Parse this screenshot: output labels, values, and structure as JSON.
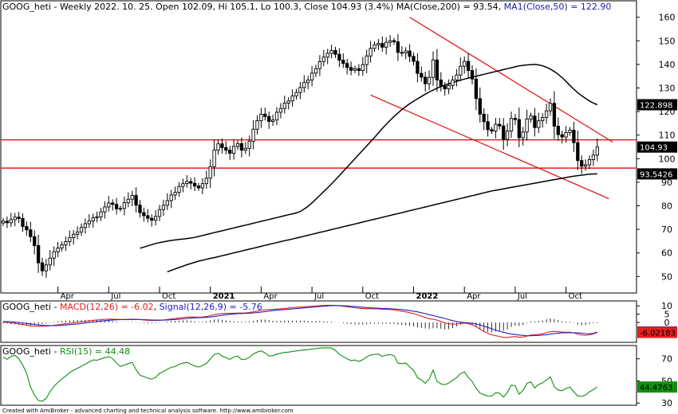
{
  "chart_data": [
    {
      "type": "candlestick",
      "panel": "price",
      "title_parts": {
        "symbol": "GOOG_heti",
        "rest": " - Weekly 2022. 10. 25. Open 102.09, Hi 105.1, Lo 100.3, Close 104.93 (3.4%) MA(Close,200) = 93.54, ",
        "ma50": "MA1(Close,50) = 122.90"
      },
      "ylim": [
        43,
        167
      ],
      "yticks": [
        50,
        60,
        70,
        80,
        90,
        100,
        110,
        120,
        130,
        140,
        150,
        160
      ],
      "x_labels": [
        {
          "label": "Apr",
          "i": 14,
          "bold": false
        },
        {
          "label": "Jul",
          "i": 27,
          "bold": false
        },
        {
          "label": "Oct",
          "i": 40,
          "bold": false
        },
        {
          "label": "2021",
          "i": 53,
          "bold": true
        },
        {
          "label": "Apr",
          "i": 66,
          "bold": false
        },
        {
          "label": "Jul",
          "i": 79,
          "bold": false
        },
        {
          "label": "Oct",
          "i": 92,
          "bold": false
        },
        {
          "label": "2022",
          "i": 105,
          "bold": true
        },
        {
          "label": "Apr",
          "i": 118,
          "bold": false
        },
        {
          "label": "Jul",
          "i": 131,
          "bold": false
        },
        {
          "label": "Oct",
          "i": 144,
          "bold": false
        }
      ],
      "closes": [
        73.5,
        72.8,
        74.1,
        75.2,
        74.6,
        71.2,
        69.8,
        66.9,
        63.1,
        55.8,
        52.4,
        54.9,
        57.8,
        60.5,
        62.1,
        63.4,
        64.8,
        66.5,
        67.9,
        68.9,
        70.8,
        72.4,
        73.6,
        74.9,
        75.3,
        77.4,
        79.5,
        81.2,
        80.6,
        78.7,
        78.9,
        81.3,
        82.8,
        84.4,
        80.3,
        77.1,
        75.8,
        74.7,
        73.9,
        75.5,
        78.4,
        80.2,
        82.2,
        84.6,
        85.7,
        88.2,
        89.4,
        90.3,
        89.6,
        88.4,
        87.6,
        89.4,
        91.7,
        96.6,
        103.6,
        106.3,
        104.7,
        103.6,
        102.3,
        105.2,
        106.4,
        103.6,
        104.4,
        107.4,
        112.5,
        116.1,
        118.9,
        117.9,
        115.8,
        116.4,
        119.7,
        121.3,
        123.6,
        124.5,
        126.6,
        128.1,
        130.2,
        132.3,
        133.4,
        136.3,
        138.2,
        141.2,
        143.1,
        144.7,
        145.9,
        144.3,
        141.8,
        140.4,
        138.7,
        137.5,
        138.2,
        137.4,
        139.9,
        143.6,
        146.8,
        148.3,
        148.9,
        147.3,
        149.4,
        150.1,
        149.6,
        145.1,
        144.9,
        145.7,
        143.4,
        141.3,
        136.2,
        134.6,
        131.8,
        134.5,
        141.9,
        133.4,
        130.8,
        129.6,
        131.1,
        133.4,
        135.5,
        139.2,
        141.3,
        137.4,
        133.8,
        125.5,
        118.9,
        115.7,
        112.3,
        111.7,
        114.6,
        113.9,
        108.2,
        111.7,
        117.1,
        116.6,
        108.9,
        111.3,
        116.8,
        118.1,
        113.2,
        116.1,
        117.5,
        120.3,
        123.5,
        113.8,
        110.2,
        109.2,
        111.1,
        112.1,
        106.8,
        99.2,
        96.8,
        97.4,
        99.6,
        101.5,
        104.93
      ],
      "ma200": [
        52.0,
        52.6,
        53.2,
        53.8,
        54.4,
        55.0,
        55.5,
        56.0,
        56.5,
        56.9,
        57.3,
        57.7,
        58.0,
        58.4,
        58.8,
        59.2,
        59.6,
        60.0,
        60.4,
        60.8,
        61.2,
        61.6,
        62.0,
        62.4,
        62.8,
        63.2,
        63.6,
        64.0,
        64.4,
        64.8,
        65.2,
        65.5,
        65.9,
        66.3,
        66.7,
        67.1,
        67.5,
        67.9,
        68.3,
        68.7,
        69.1,
        69.5,
        69.9,
        70.3,
        70.7,
        71.1,
        71.5,
        71.9,
        72.3,
        72.7,
        73.1,
        73.5,
        73.9,
        74.3,
        74.7,
        75.1,
        75.5,
        75.9,
        76.3,
        76.7,
        77.1,
        77.5,
        77.9,
        78.3,
        78.7,
        79.1,
        79.5,
        79.9,
        80.3,
        80.7,
        81.1,
        81.5,
        81.9,
        82.3,
        82.7,
        83.1,
        83.5,
        83.9,
        84.3,
        84.7,
        85.1,
        85.5,
        85.9,
        86.3,
        86.6,
        86.9,
        87.2,
        87.5,
        87.8,
        88.1,
        88.4,
        88.7,
        89.0,
        89.3,
        89.6,
        89.9,
        90.2,
        90.5,
        90.8,
        91.1,
        91.4,
        91.7,
        92.0,
        92.3,
        92.6,
        92.8,
        93.0,
        93.2,
        93.4,
        93.5,
        93.54
      ],
      "ma50": [
        62.0,
        62.5,
        63.0,
        63.5,
        64.0,
        64.4,
        64.7,
        65.0,
        65.3,
        65.5,
        65.7,
        65.9,
        66.1,
        66.3,
        66.6,
        67.0,
        67.4,
        67.8,
        68.2,
        68.6,
        69.0,
        69.4,
        69.8,
        70.2,
        70.6,
        71.0,
        71.4,
        71.8,
        72.2,
        72.6,
        73.0,
        73.4,
        73.8,
        74.2,
        74.6,
        75.0,
        75.4,
        75.8,
        76.2,
        76.6,
        77.0,
        77.6,
        78.6,
        79.8,
        81.2,
        82.8,
        84.4,
        86.0,
        87.6,
        89.3,
        91.0,
        92.8,
        94.6,
        96.4,
        98.2,
        100.0,
        101.8,
        103.6,
        105.4,
        107.2,
        109.0,
        110.9,
        112.8,
        114.6,
        116.3,
        117.9,
        119.4,
        120.8,
        122.1,
        123.3,
        124.4,
        125.4,
        126.4,
        127.4,
        128.3,
        129.1,
        129.9,
        130.6,
        131.2,
        131.8,
        132.3,
        132.8,
        133.3,
        133.8,
        134.2,
        134.6,
        135.0,
        135.4,
        135.8,
        136.2,
        136.6,
        137.0,
        137.4,
        137.8,
        138.2,
        138.6,
        139.0,
        139.4,
        139.6,
        139.8,
        139.9,
        140.0,
        139.8,
        139.4,
        138.8,
        138.0,
        137.0,
        135.8,
        134.4,
        132.8,
        131.1,
        129.5,
        128.0,
        126.7,
        125.6,
        124.5,
        123.6,
        122.898
      ],
      "horizontal_lines": [
        108.0,
        96.0
      ],
      "channel_lines": [
        {
          "from": {
            "i": 104,
            "v": 160
          },
          "to": {
            "i": 156,
            "v": 107
          }
        },
        {
          "from": {
            "i": 94,
            "v": 127
          },
          "to": {
            "i": 155,
            "v": 83
          }
        }
      ],
      "value_tags": [
        {
          "text": "122.898",
          "value": 122.898,
          "bg": "#000000",
          "fg": "#ffffff"
        },
        {
          "text": "104.93",
          "value": 104.93,
          "bg": "#000000",
          "fg": "#ffffff"
        },
        {
          "text": "93.5426",
          "value": 93.5426,
          "bg": "#000000",
          "fg": "#ffffff"
        }
      ],
      "colors": {
        "up": "#000000",
        "down": "#000000",
        "ma200": "#000000",
        "ma50": "#000000",
        "levels": "#e02020",
        "channel": "#e02020"
      }
    },
    {
      "type": "line",
      "panel": "macd",
      "title_parts": {
        "symbol": "GOOG_heti",
        "macd": "MACD(12,26) = -6.02",
        "sep": ", ",
        "signal": "Signal(12,26,9) = -5.76"
      },
      "ylim": [
        -12,
        13
      ],
      "yticks": [
        10,
        5,
        0
      ],
      "series": [
        {
          "key": "macd",
          "color": "#e02020",
          "values": [
            0.2,
            0.1,
            -0.2,
            -0.5,
            -0.9,
            -1.3,
            -1.7,
            -2.0,
            -2.2,
            -2.3,
            -2.3,
            -2.2,
            -2.0,
            -1.7,
            -1.4,
            -1.1,
            -0.8,
            -0.5,
            -0.2,
            0.1,
            0.4,
            0.7,
            1.0,
            1.3,
            1.5,
            1.7,
            1.9,
            2.0,
            2.0,
            1.9,
            1.8,
            1.8,
            1.9,
            2.0,
            1.9,
            1.7,
            1.5,
            1.3,
            1.2,
            1.2,
            1.3,
            1.5,
            1.8,
            2.1,
            2.4,
            2.7,
            3.0,
            3.2,
            3.3,
            3.3,
            3.2,
            3.3,
            3.6,
            4.1,
            4.7,
            5.2,
            5.4,
            5.5,
            5.5,
            5.6,
            5.7,
            5.7,
            5.8,
            6.0,
            6.4,
            6.9,
            7.4,
            7.7,
            7.8,
            7.9,
            8.1,
            8.3,
            8.5,
            8.7,
            8.9,
            9.1,
            9.3,
            9.5,
            9.6,
            9.8,
            10.0,
            10.2,
            10.3,
            10.4,
            10.4,
            10.3,
            10.1,
            9.8,
            9.5,
            9.2,
            8.9,
            8.6,
            8.4,
            8.3,
            8.3,
            8.3,
            8.2,
            8.0,
            7.9,
            7.8,
            7.6,
            7.2,
            6.8,
            6.4,
            5.9,
            5.3,
            4.6,
            3.8,
            3.0,
            2.3,
            2.0,
            1.4,
            0.6,
            -0.2,
            -0.8,
            -1.0,
            -0.9,
            -0.6,
            -0.4,
            -0.7,
            -1.4,
            -2.6,
            -4.0,
            -5.4,
            -6.6,
            -7.5,
            -8.0,
            -8.4,
            -9.0,
            -9.1,
            -8.7,
            -8.5,
            -8.9,
            -8.8,
            -8.2,
            -7.6,
            -7.5,
            -7.2,
            -6.8,
            -6.2,
            -5.5,
            -5.4,
            -5.6,
            -5.8,
            -5.9,
            -5.9,
            -6.3,
            -7.0,
            -7.6,
            -7.7,
            -7.4,
            -6.9,
            -6.02
          ]
        },
        {
          "key": "signal",
          "color": "#2020c0",
          "values": [
            0.6,
            0.5,
            0.4,
            0.2,
            0.0,
            -0.3,
            -0.6,
            -0.9,
            -1.2,
            -1.5,
            -1.7,
            -1.8,
            -1.9,
            -1.9,
            -1.8,
            -1.7,
            -1.5,
            -1.3,
            -1.1,
            -0.9,
            -0.6,
            -0.3,
            0.0,
            0.3,
            0.6,
            0.9,
            1.1,
            1.3,
            1.5,
            1.6,
            1.7,
            1.7,
            1.8,
            1.8,
            1.8,
            1.8,
            1.7,
            1.6,
            1.5,
            1.4,
            1.4,
            1.4,
            1.5,
            1.6,
            1.8,
            2.0,
            2.2,
            2.4,
            2.6,
            2.8,
            2.9,
            3.0,
            3.1,
            3.3,
            3.6,
            4.0,
            4.4,
            4.7,
            4.9,
            5.1,
            5.3,
            5.4,
            5.5,
            5.6,
            5.8,
            6.0,
            6.3,
            6.6,
            6.9,
            7.2,
            7.4,
            7.6,
            7.8,
            8.0,
            8.2,
            8.4,
            8.6,
            8.8,
            9.0,
            9.2,
            9.4,
            9.6,
            9.8,
            10.0,
            10.1,
            10.2,
            10.2,
            10.1,
            10.0,
            9.8,
            9.6,
            9.4,
            9.2,
            9.0,
            8.8,
            8.7,
            8.6,
            8.5,
            8.4,
            8.3,
            8.2,
            8.0,
            7.8,
            7.5,
            7.2,
            6.8,
            6.4,
            5.9,
            5.3,
            4.7,
            4.2,
            3.6,
            3.0,
            2.4,
            1.7,
            1.1,
            0.6,
            0.2,
            -0.1,
            -0.3,
            -0.5,
            -0.9,
            -1.5,
            -2.2,
            -3.0,
            -3.8,
            -4.6,
            -5.3,
            -5.9,
            -6.5,
            -7.0,
            -7.3,
            -7.6,
            -7.8,
            -8.0,
            -8.0,
            -7.9,
            -7.8,
            -7.6,
            -7.4,
            -7.0,
            -6.7,
            -6.5,
            -6.3,
            -6.2,
            -6.2,
            -6.2,
            -6.3,
            -6.5,
            -6.7,
            -6.8,
            -6.6,
            -5.76
          ]
        }
      ],
      "value_tags": [
        {
          "text": "-5.75912",
          "value": -5.75912,
          "bg": "#2020c0",
          "fg": "#ffffff"
        },
        {
          "text": "-6.02183",
          "value": -6.02183,
          "bg": "#e02020",
          "fg": "#000000"
        }
      ]
    },
    {
      "type": "line",
      "panel": "rsi",
      "title_parts": {
        "symbol": "GOOG_heti",
        "rsi": "RSI(15) = 44.48"
      },
      "ylim": [
        28,
        82
      ],
      "yticks": [
        70,
        50,
        30
      ],
      "series": [
        {
          "key": "rsi",
          "color": "#109010",
          "values": [
            71.7,
            69.6,
            72.1,
            73.3,
            70.1,
            64.4,
            56.8,
            44.3,
            37.2,
            32.4,
            31.6,
            34.1,
            40.3,
            45.2,
            48.6,
            51.8,
            54.4,
            57.6,
            59.7,
            61.4,
            63.2,
            65.1,
            67.2,
            69.0,
            68.7,
            69.9,
            71.0,
            72.1,
            70.2,
            66.2,
            63.1,
            64.3,
            65.6,
            66.9,
            60.2,
            55.1,
            53.9,
            52.4,
            51.6,
            53.3,
            56.8,
            58.5,
            60.6,
            62.3,
            63.1,
            65.0,
            66.0,
            66.8,
            65.1,
            63.5,
            62.5,
            63.9,
            65.9,
            69.8,
            73.9,
            75.0,
            72.6,
            71.0,
            69.5,
            71.6,
            72.4,
            69.4,
            69.6,
            71.4,
            74.4,
            76.1,
            77.2,
            75.4,
            72.5,
            72.8,
            74.3,
            75.0,
            75.8,
            76.0,
            76.7,
            77.1,
            77.6,
            78.0,
            78.2,
            78.9,
            79.2,
            79.7,
            79.9,
            80.0,
            79.8,
            77.6,
            74.0,
            72.1,
            69.9,
            68.4,
            68.9,
            67.6,
            69.2,
            71.6,
            73.4,
            74.1,
            74.3,
            72.2,
            73.4,
            73.8,
            72.8,
            66.0,
            65.6,
            66.2,
            62.7,
            59.6,
            53.0,
            51.0,
            47.8,
            51.7,
            59.8,
            49.6,
            47.4,
            46.6,
            48.1,
            50.7,
            52.9,
            56.6,
            58.2,
            53.1,
            49.4,
            43.5,
            39.0,
            37.5,
            36.4,
            36.3,
            39.4,
            38.9,
            35.4,
            39.6,
            46.2,
            45.6,
            38.0,
            41.4,
            47.8,
            49.1,
            43.6,
            46.9,
            48.2,
            50.9,
            53.7,
            44.6,
            41.8,
            41.1,
            43.2,
            44.5,
            40.1,
            36.4,
            36.0,
            37.2,
            40.2,
            42.1,
            44.48
          ]
        }
      ],
      "value_tags": [
        {
          "text": "44.4763",
          "value": 44.4763,
          "bg": "#109010",
          "fg": "#000000"
        }
      ]
    }
  ],
  "footer": "Created with AmiBroker - advanced charting and technical analysis software. http://www.amibroker.com"
}
